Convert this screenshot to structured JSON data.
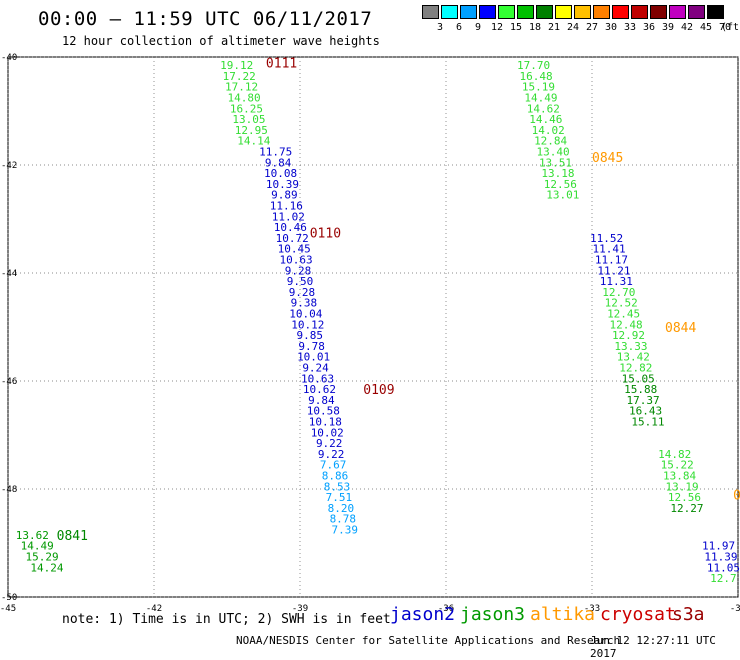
{
  "header": {
    "title": "00:00 — 11:59 UTC 06/11/2017",
    "subtitle": "12 hour collection of altimeter wave heights"
  },
  "legend": {
    "bins": [
      {
        "color": "#808080",
        "label": "3"
      },
      {
        "color": "#00ffff",
        "label": "6"
      },
      {
        "color": "#00a0ff",
        "label": "9"
      },
      {
        "color": "#0000ff",
        "label": "12"
      },
      {
        "color": "#33ff33",
        "label": "15"
      },
      {
        "color": "#00c000",
        "label": "18"
      },
      {
        "color": "#008000",
        "label": "21"
      },
      {
        "color": "#ffff00",
        "label": "24"
      },
      {
        "color": "#ffc000",
        "label": "27"
      },
      {
        "color": "#ff8000",
        "label": "30"
      },
      {
        "color": "#ff0000",
        "label": "33"
      },
      {
        "color": "#c00000",
        "label": "36"
      },
      {
        "color": "#800000",
        "label": "39"
      },
      {
        "color": "#c000c0",
        "label": "42"
      },
      {
        "color": "#800080",
        "label": "45"
      },
      {
        "color": "#000000",
        "label": "70"
      }
    ],
    "unit_label": "(ft)"
  },
  "footer": {
    "note": "note: 1) Time is in UTC; 2) SWH is in feet",
    "satellites": [
      {
        "name": "jason2",
        "color": "#0000cc"
      },
      {
        "name": "jason3",
        "color": "#009900"
      },
      {
        "name": "altika",
        "color": "#ff9900"
      },
      {
        "name": "cryosat",
        "color": "#cc0000"
      },
      {
        "name": "s3a",
        "color": "#990000"
      }
    ],
    "credit": "NOAA/NESDIS Center for Satellite Applications and Research",
    "timestamp": "Jun 12 12:27:11 UTC 2017"
  },
  "chart_data": {
    "type": "scatter",
    "title": "00:00 — 11:59 UTC 06/11/2017",
    "subtitle": "12 hour collection of altimeter wave heights",
    "xlim": [
      -45,
      -30
    ],
    "ylim": [
      -50,
      -40
    ],
    "x_ticks": [
      -45,
      -42,
      -39,
      -36,
      -33,
      -30
    ],
    "x_tick_labels": [
      "-45",
      "-42",
      "-39",
      "-36",
      "-33",
      "-30"
    ],
    "y_ticks": [
      -40,
      -42,
      -44,
      -46,
      -48,
      -50
    ],
    "y_tick_labels": [
      "-40",
      "-42",
      "-44",
      "-46",
      "-48",
      "-50"
    ],
    "grid": true,
    "series": [
      {
        "name": "jason2",
        "color": "#0000cc",
        "points": [
          {
            "x": -39.5,
            "y": -41.75,
            "v": "11.75"
          },
          {
            "x": -39.45,
            "y": -41.95,
            "v": "9.84"
          },
          {
            "x": -39.4,
            "y": -42.15,
            "v": "10.08"
          },
          {
            "x": -39.36,
            "y": -42.35,
            "v": "10.39"
          },
          {
            "x": -39.32,
            "y": -42.55,
            "v": "9.89"
          },
          {
            "x": -39.28,
            "y": -42.75,
            "v": "11.16"
          },
          {
            "x": -39.24,
            "y": -42.95,
            "v": "11.02"
          },
          {
            "x": -39.2,
            "y": -43.15,
            "v": "10.46"
          },
          {
            "x": -39.16,
            "y": -43.35,
            "v": "10.72"
          },
          {
            "x": -39.12,
            "y": -43.55,
            "v": "10.45"
          },
          {
            "x": -39.08,
            "y": -43.75,
            "v": "10.63"
          },
          {
            "x": -39.04,
            "y": -43.95,
            "v": "9.28"
          },
          {
            "x": -39.0,
            "y": -44.15,
            "v": "9.50"
          },
          {
            "x": -38.96,
            "y": -44.35,
            "v": "9.28"
          },
          {
            "x": -38.92,
            "y": -44.55,
            "v": "9.38"
          },
          {
            "x": -38.88,
            "y": -44.75,
            "v": "10.04"
          },
          {
            "x": -38.84,
            "y": -44.95,
            "v": "10.12"
          },
          {
            "x": -38.8,
            "y": -45.15,
            "v": "9.85"
          },
          {
            "x": -38.76,
            "y": -45.35,
            "v": "9.78"
          },
          {
            "x": -38.72,
            "y": -45.55,
            "v": "10.01"
          },
          {
            "x": -38.68,
            "y": -45.75,
            "v": "9.24"
          },
          {
            "x": -38.64,
            "y": -45.95,
            "v": "10.63"
          },
          {
            "x": -38.6,
            "y": -46.15,
            "v": "10.62"
          },
          {
            "x": -38.56,
            "y": -46.35,
            "v": "9.84"
          },
          {
            "x": -38.52,
            "y": -46.55,
            "v": "10.58"
          },
          {
            "x": -38.48,
            "y": -46.75,
            "v": "10.18"
          },
          {
            "x": -38.44,
            "y": -46.95,
            "v": "10.02"
          },
          {
            "x": -38.4,
            "y": -47.15,
            "v": "9.22"
          },
          {
            "x": -38.36,
            "y": -47.35,
            "v": "9.22"
          },
          {
            "x": -32.7,
            "y": -43.35,
            "v": "11.52"
          },
          {
            "x": -32.65,
            "y": -43.55,
            "v": "11.41"
          },
          {
            "x": -32.6,
            "y": -43.75,
            "v": "11.17"
          },
          {
            "x": -32.55,
            "y": -43.95,
            "v": "11.21"
          },
          {
            "x": -32.5,
            "y": -44.15,
            "v": "11.31"
          },
          {
            "x": -30.4,
            "y": -49.05,
            "v": "11.97"
          },
          {
            "x": -30.35,
            "y": -49.25,
            "v": "11.39"
          },
          {
            "x": -30.3,
            "y": -49.45,
            "v": "11.05"
          }
        ]
      },
      {
        "name": "jason3",
        "color": "#009900",
        "points": [
          {
            "x": -44.5,
            "y": -48.85,
            "v": "13.62"
          },
          {
            "x": -44.4,
            "y": -49.05,
            "v": "14.49"
          },
          {
            "x": -44.3,
            "y": -49.25,
            "v": "15.29"
          },
          {
            "x": -44.2,
            "y": -49.45,
            "v": "14.24"
          }
        ]
      },
      {
        "name": "jason3",
        "color": "#33dd33",
        "points": [
          {
            "x": -40.3,
            "y": -40.15,
            "v": "19.12"
          },
          {
            "x": -40.25,
            "y": -40.35,
            "v": "17.22"
          },
          {
            "x": -40.2,
            "y": -40.55,
            "v": "17.12"
          },
          {
            "x": -40.15,
            "y": -40.75,
            "v": "14.80"
          },
          {
            "x": -40.1,
            "y": -40.95,
            "v": "16.25"
          },
          {
            "x": -40.05,
            "y": -41.15,
            "v": "13.05"
          },
          {
            "x": -40.0,
            "y": -41.35,
            "v": "12.95"
          },
          {
            "x": -39.95,
            "y": -41.55,
            "v": "14.14"
          },
          {
            "x": -34.2,
            "y": -40.15,
            "v": "17.70"
          },
          {
            "x": -34.15,
            "y": -40.35,
            "v": "16.48"
          },
          {
            "x": -34.1,
            "y": -40.55,
            "v": "15.19"
          },
          {
            "x": -34.05,
            "y": -40.75,
            "v": "14.49"
          },
          {
            "x": -34.0,
            "y": -40.95,
            "v": "14.62"
          },
          {
            "x": -33.95,
            "y": -41.15,
            "v": "14.46"
          },
          {
            "x": -33.9,
            "y": -41.35,
            "v": "14.02"
          },
          {
            "x": -33.85,
            "y": -41.55,
            "v": "12.84"
          },
          {
            "x": -33.8,
            "y": -41.75,
            "v": "13.40"
          },
          {
            "x": -33.75,
            "y": -41.95,
            "v": "13.51"
          },
          {
            "x": -33.7,
            "y": -42.15,
            "v": "13.18"
          },
          {
            "x": -33.65,
            "y": -42.35,
            "v": "12.56"
          },
          {
            "x": -33.6,
            "y": -42.55,
            "v": "13.01"
          },
          {
            "x": -32.45,
            "y": -44.35,
            "v": "12.70"
          },
          {
            "x": -32.4,
            "y": -44.55,
            "v": "12.52"
          },
          {
            "x": -32.35,
            "y": -44.75,
            "v": "12.45"
          },
          {
            "x": -32.3,
            "y": -44.95,
            "v": "12.48"
          },
          {
            "x": -32.25,
            "y": -45.15,
            "v": "12.92"
          },
          {
            "x": -32.2,
            "y": -45.35,
            "v": "13.33"
          },
          {
            "x": -32.15,
            "y": -45.55,
            "v": "13.42"
          },
          {
            "x": -32.1,
            "y": -45.75,
            "v": "12.82"
          },
          {
            "x": -31.3,
            "y": -47.35,
            "v": "14.82"
          },
          {
            "x": -31.25,
            "y": -47.55,
            "v": "15.22"
          },
          {
            "x": -31.2,
            "y": -47.75,
            "v": "13.84"
          },
          {
            "x": -31.15,
            "y": -47.95,
            "v": "13.19"
          },
          {
            "x": -31.1,
            "y": -48.15,
            "v": "12.56"
          },
          {
            "x": -30.3,
            "y": -49.65,
            "v": "12.7"
          }
        ]
      },
      {
        "name": "jason3",
        "color": "#008800",
        "points": [
          {
            "x": -32.05,
            "y": -45.95,
            "v": "15.05"
          },
          {
            "x": -32.0,
            "y": -46.15,
            "v": "15.88"
          },
          {
            "x": -31.95,
            "y": -46.35,
            "v": "17.37"
          },
          {
            "x": -31.9,
            "y": -46.55,
            "v": "16.43"
          },
          {
            "x": -31.85,
            "y": -46.75,
            "v": "15.11"
          },
          {
            "x": -31.05,
            "y": -48.35,
            "v": "12.27"
          }
        ]
      },
      {
        "name": "jason2",
        "color": "#00a0ff",
        "points": [
          {
            "x": -38.32,
            "y": -47.55,
            "v": "7.67"
          },
          {
            "x": -38.28,
            "y": -47.75,
            "v": "8.86"
          },
          {
            "x": -38.24,
            "y": -47.95,
            "v": "8.53"
          },
          {
            "x": -38.2,
            "y": -48.15,
            "v": "7.51"
          },
          {
            "x": -38.16,
            "y": -48.35,
            "v": "8.20"
          },
          {
            "x": -38.12,
            "y": -48.55,
            "v": "8.78"
          },
          {
            "x": -38.08,
            "y": -48.75,
            "v": "7.39"
          }
        ]
      }
    ],
    "pass_times": [
      {
        "label": "0111",
        "x": -39.7,
        "y": -40.1,
        "color": "#990000"
      },
      {
        "label": "0845",
        "x": -33.0,
        "y": -41.85,
        "color": "#ff9900"
      },
      {
        "label": "0110",
        "x": -38.8,
        "y": -43.25,
        "color": "#990000"
      },
      {
        "label": "0844",
        "x": -31.5,
        "y": -45.0,
        "color": "#ff9900"
      },
      {
        "label": "0109",
        "x": -37.7,
        "y": -46.15,
        "color": "#990000"
      },
      {
        "label": "0841",
        "x": -44.0,
        "y": -48.85,
        "color": "#008800"
      },
      {
        "label": "0",
        "x": -30.1,
        "y": -48.1,
        "color": "#ff9900"
      }
    ]
  }
}
